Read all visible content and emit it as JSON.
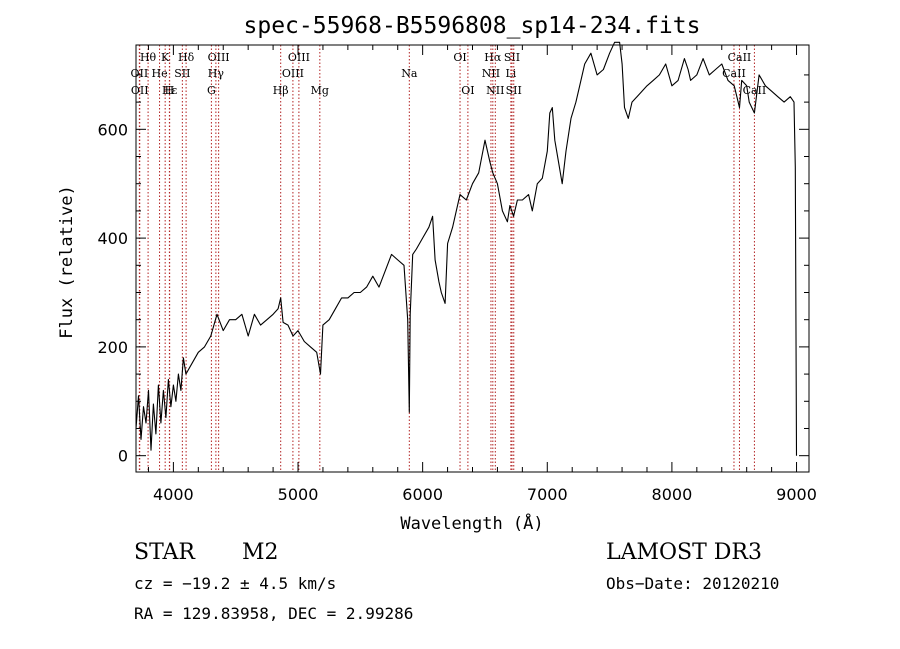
{
  "chart_data": {
    "type": "line",
    "title": "spec-55968-B5596808_sp14-234.fits",
    "xlabel": "Wavelength (Å)",
    "ylabel": "Flux (relative)",
    "xlim": [
      3700,
      9100
    ],
    "ylim": [
      -30,
      755
    ],
    "x_ticks": [
      4000,
      5000,
      6000,
      7000,
      8000,
      9000
    ],
    "y_ticks": [
      0,
      200,
      400,
      600
    ],
    "spectrum": {
      "x": [
        3700,
        3720,
        3740,
        3760,
        3780,
        3800,
        3820,
        3840,
        3860,
        3880,
        3900,
        3920,
        3940,
        3960,
        3980,
        4000,
        4020,
        4040,
        4060,
        4080,
        4100,
        4150,
        4200,
        4250,
        4300,
        4350,
        4400,
        4450,
        4500,
        4550,
        4600,
        4650,
        4700,
        4750,
        4800,
        4840,
        4861,
        4880,
        4920,
        4960,
        5000,
        5050,
        5100,
        5150,
        5180,
        5200,
        5250,
        5300,
        5350,
        5400,
        5450,
        5500,
        5550,
        5600,
        5650,
        5700,
        5750,
        5800,
        5850,
        5880,
        5893,
        5900,
        5920,
        5950,
        6000,
        6050,
        6080,
        6100,
        6130,
        6150,
        6180,
        6200,
        6240,
        6270,
        6300,
        6350,
        6400,
        6450,
        6500,
        6540,
        6563,
        6600,
        6640,
        6680,
        6700,
        6730,
        6760,
        6800,
        6850,
        6880,
        6920,
        6960,
        7000,
        7020,
        7040,
        7060,
        7090,
        7120,
        7150,
        7190,
        7230,
        7260,
        7300,
        7350,
        7400,
        7450,
        7500,
        7540,
        7580,
        7600,
        7620,
        7650,
        7680,
        7720,
        7760,
        7800,
        7850,
        7900,
        7950,
        8000,
        8050,
        8100,
        8130,
        8150,
        8200,
        8250,
        8300,
        8350,
        8400,
        8450,
        8500,
        8542,
        8560,
        8600,
        8620,
        8662,
        8700,
        8750,
        8800,
        8850,
        8900,
        8950,
        8980,
        8990,
        9000
      ],
      "y": [
        50,
        110,
        30,
        90,
        60,
        120,
        10,
        95,
        40,
        130,
        60,
        120,
        70,
        140,
        90,
        130,
        100,
        150,
        120,
        180,
        150,
        170,
        190,
        200,
        220,
        260,
        230,
        250,
        250,
        260,
        220,
        260,
        240,
        250,
        260,
        270,
        290,
        245,
        240,
        220,
        230,
        210,
        200,
        190,
        150,
        240,
        250,
        270,
        290,
        290,
        300,
        300,
        310,
        330,
        310,
        340,
        370,
        360,
        350,
        250,
        80,
        260,
        370,
        380,
        400,
        420,
        440,
        360,
        320,
        300,
        280,
        390,
        420,
        450,
        480,
        470,
        500,
        520,
        580,
        540,
        520,
        500,
        450,
        430,
        460,
        440,
        470,
        470,
        480,
        450,
        500,
        510,
        560,
        630,
        640,
        580,
        540,
        500,
        560,
        620,
        650,
        680,
        720,
        740,
        700,
        710,
        740,
        760,
        760,
        720,
        640,
        620,
        650,
        660,
        670,
        680,
        690,
        700,
        720,
        680,
        690,
        730,
        710,
        690,
        700,
        730,
        700,
        710,
        720,
        690,
        680,
        640,
        690,
        680,
        650,
        630,
        700,
        680,
        670,
        660,
        650,
        660,
        650,
        530,
        0
      ]
    },
    "lines": [
      {
        "name": "Hθ",
        "wave": 3797,
        "tier": 0
      },
      {
        "name": "K",
        "wave": 3934,
        "tier": 0
      },
      {
        "name": "Hδ",
        "wave": 4102,
        "tier": 0
      },
      {
        "name": "OIII",
        "wave": 4363,
        "tier": 0
      },
      {
        "name": "OIII",
        "wave": 5007,
        "tier": 0
      },
      {
        "name": "OI",
        "wave": 6300,
        "tier": 0
      },
      {
        "name": "Hα",
        "wave": 6563,
        "tier": 0
      },
      {
        "name": "SII",
        "wave": 6717,
        "tier": 0
      },
      {
        "name": "CaII",
        "wave": 8542,
        "tier": 0
      },
      {
        "name": "OII",
        "wave": 3727,
        "tier": 1
      },
      {
        "name": "He",
        "wave": 3889,
        "tier": 1
      },
      {
        "name": "SII",
        "wave": 4072,
        "tier": 1
      },
      {
        "name": "Hγ",
        "wave": 4341,
        "tier": 1
      },
      {
        "name": "OIII",
        "wave": 4959,
        "tier": 1
      },
      {
        "name": "Na",
        "wave": 5893,
        "tier": 1
      },
      {
        "name": "NII",
        "wave": 6548,
        "tier": 1
      },
      {
        "name": "Li",
        "wave": 6708,
        "tier": 1
      },
      {
        "name": "CaII",
        "wave": 8498,
        "tier": 1
      },
      {
        "name": "OII",
        "wave": 3730,
        "tier": 2
      },
      {
        "name": "Hε",
        "wave": 3970,
        "tier": 2
      },
      {
        "name": "H",
        "wave": 3968,
        "tier": 2
      },
      {
        "name": "G",
        "wave": 4305,
        "tier": 2
      },
      {
        "name": "Hβ",
        "wave": 4861,
        "tier": 2
      },
      {
        "name": "Mg",
        "wave": 5175,
        "tier": 2
      },
      {
        "name": "OI",
        "wave": 6363,
        "tier": 2
      },
      {
        "name": "NII",
        "wave": 6583,
        "tier": 2
      },
      {
        "name": "SII",
        "wave": 6731,
        "tier": 2
      },
      {
        "name": "CaII",
        "wave": 8662,
        "tier": 2
      }
    ],
    "colors": {
      "spectrum": "#000000",
      "line_marker": "#b22222",
      "axis": "#000000"
    }
  },
  "info": {
    "class": "STAR",
    "subclass": "M2",
    "survey": "LAMOST DR3",
    "cz": "cz = −19.2 ± 4.5 km/s",
    "obs_date": "Obs−Date: 20120210",
    "radec": "RA = 129.83958, DEC =    2.99286"
  }
}
